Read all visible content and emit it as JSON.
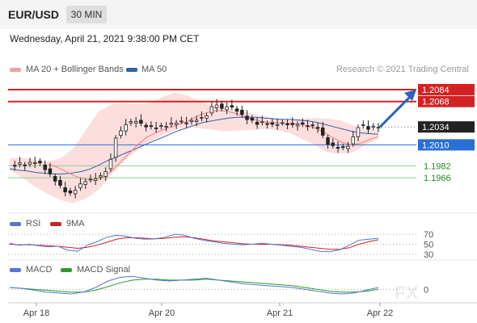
{
  "header": {
    "symbol": "EUR/USD",
    "timeframe": "30 MIN"
  },
  "datetime": "Wednesday, April 21, 2021 9:38:00 PM CET",
  "legend": {
    "ma20_bb": "MA 20 + Bollinger Bands",
    "ma50": "MA 50"
  },
  "credit": "Research © 2021 Trading Central",
  "watermark": "FX",
  "colors": {
    "resistance": "#d32222",
    "support": "#2a6fd6",
    "support_fill": "#2a6fd6",
    "weak_support": "#1e8a1e",
    "candle": "#222222",
    "ma20": "#f08080",
    "ma50": "#3060b0",
    "bands": "#fbd8d8",
    "rsi": "#5577cc",
    "rsi_ma": "#cc2222",
    "macd": "#5577cc",
    "macd_signal": "#2a9a2a",
    "arrow": "#2a64b8"
  },
  "chart_data": [
    {
      "type": "candlestick",
      "panel": "price",
      "x_ticks": [
        "Apr 18",
        "Apr 20",
        "Apr 21",
        "Apr 22"
      ],
      "ylim": [
        1.1925,
        1.2098
      ],
      "price_levels": [
        {
          "value": 1.2084,
          "label": "1.2084",
          "kind": "resistance"
        },
        {
          "value": 1.2068,
          "label": "1.2068",
          "kind": "resistance"
        },
        {
          "value": 1.2034,
          "label": "1.2034",
          "kind": "last"
        },
        {
          "value": 1.201,
          "label": "1.2010",
          "kind": "support"
        },
        {
          "value": 1.1982,
          "label": "1.1982",
          "kind": "weak_support"
        },
        {
          "value": 1.1966,
          "label": "1.1966",
          "kind": "weak_support"
        }
      ],
      "close_path": [
        1.1984,
        1.1982,
        1.1985,
        1.1983,
        1.1986,
        1.1987,
        1.1985,
        1.1978,
        1.197,
        1.1962,
        1.1955,
        1.1948,
        1.1945,
        1.195,
        1.1957,
        1.1962,
        1.1963,
        1.1965,
        1.1968,
        1.1975,
        1.199,
        1.202,
        1.2028,
        1.2038,
        1.204,
        1.2042,
        1.2038,
        1.2035,
        1.2034,
        1.2033,
        1.2035,
        1.2036,
        1.2038,
        1.204,
        1.2041,
        1.204,
        1.2042,
        1.2044,
        1.2046,
        1.205,
        1.206,
        1.2064,
        1.2058,
        1.2062,
        1.206,
        1.2056,
        1.205,
        1.2045,
        1.2042,
        1.2038,
        1.204,
        1.2039,
        1.2037,
        1.2038,
        1.2039,
        1.2038,
        1.2036,
        1.2038,
        1.2037,
        1.2036,
        1.2035,
        1.2033,
        1.2022,
        1.2012,
        1.2008,
        1.2006,
        1.2006,
        1.2009,
        1.202,
        1.2034,
        1.2036,
        1.2032,
        1.2034,
        1.2034
      ],
      "ma50": [
        1.1978,
        1.1976,
        1.1975,
        1.1973,
        1.1972,
        1.1971,
        1.1971,
        1.1972,
        1.1974,
        1.1977,
        1.1982,
        1.1988,
        1.1993,
        1.1998,
        1.2003,
        1.2008,
        1.2013,
        1.2018,
        1.2023,
        1.2028,
        1.2032,
        1.2036,
        1.204,
        1.2042,
        1.2044,
        1.2046,
        1.2047,
        1.2047,
        1.2047,
        1.2046,
        1.2045,
        1.2044,
        1.2044,
        1.2043,
        1.2042,
        1.204,
        1.2037,
        1.2034,
        1.2031,
        1.2028,
        1.2026,
        1.2025,
        1.2024
      ],
      "ma20": [
        1.1984,
        1.198,
        1.1974,
        1.1968,
        1.1964,
        1.1963,
        1.1966,
        1.1974,
        1.1986,
        1.1998,
        1.201,
        1.202,
        1.2026,
        1.2031,
        1.2035,
        1.2039,
        1.2044,
        1.205,
        1.2054,
        1.2056,
        1.2055,
        1.2052,
        1.2048,
        1.2044,
        1.2041,
        1.204,
        1.2039,
        1.2039,
        1.2038,
        1.2036,
        1.2032,
        1.2026,
        1.2019,
        1.2013,
        1.201,
        1.2012,
        1.2017,
        1.2021
      ],
      "bb_upper": [
        1.1992,
        1.1993,
        1.199,
        1.1988,
        1.1992,
        1.2005,
        1.203,
        1.2055,
        1.2064,
        1.2066,
        1.2064,
        1.2066,
        1.2074,
        1.208,
        1.2076,
        1.2068,
        1.2062,
        1.2058,
        1.2056,
        1.2052,
        1.2048,
        1.2045,
        1.2044,
        1.2045,
        1.2046,
        1.2045,
        1.2043,
        1.2036,
        1.203,
        1.203
      ],
      "bb_lower": [
        1.1976,
        1.1966,
        1.1954,
        1.1944,
        1.1936,
        1.1932,
        1.1938,
        1.195,
        1.197,
        1.1988,
        1.2002,
        1.2014,
        1.2022,
        1.203,
        1.2034,
        1.2032,
        1.203,
        1.2028,
        1.2029,
        1.203,
        1.2031,
        1.203,
        1.2026,
        1.2018,
        1.201,
        1.2,
        1.1998,
        1.2,
        1.201,
        1.2018
      ]
    },
    {
      "type": "line",
      "panel": "rsi",
      "legend": [
        "RSI",
        "9MA"
      ],
      "y_ticks": [
        "70",
        "50",
        "30"
      ],
      "ylim": [
        25,
        75
      ],
      "series": [
        {
          "name": "RSI",
          "values": [
            52,
            48,
            50,
            47,
            45,
            46,
            38,
            36,
            48,
            55,
            64,
            68,
            66,
            62,
            60,
            61,
            64,
            70,
            68,
            62,
            58,
            55,
            52,
            50,
            49,
            50,
            52,
            50,
            48,
            46,
            44,
            40,
            36,
            35,
            39,
            48,
            58,
            60,
            62
          ]
        },
        {
          "name": "9MA",
          "values": [
            50,
            49,
            49,
            48,
            47,
            46,
            44,
            42,
            44,
            48,
            54,
            60,
            63,
            63,
            62,
            61,
            62,
            64,
            65,
            63,
            60,
            57,
            55,
            53,
            51,
            50,
            50,
            50,
            49,
            48,
            46,
            44,
            42,
            40,
            40,
            43,
            50,
            55,
            59
          ]
        }
      ]
    },
    {
      "type": "line",
      "panel": "macd",
      "legend": [
        "MACD",
        "MACD Signal"
      ],
      "y_ticks": [
        "0"
      ],
      "ylim": [
        -0.0012,
        0.0016
      ],
      "series": [
        {
          "name": "MACD",
          "values": [
            0.0002,
            0.0001,
            -0.0001,
            -0.0003,
            -0.0004,
            -0.0005,
            -0.0003,
            0.0002,
            0.0009,
            0.0013,
            0.0014,
            0.0012,
            0.001,
            0.0009,
            0.001,
            0.0011,
            0.0012,
            0.001,
            0.0008,
            0.0006,
            0.0005,
            0.0004,
            0.0003,
            0.0002,
            0.0,
            -0.0002,
            -0.0004,
            -0.0005,
            -0.0004,
            -0.0001,
            0.0002
          ]
        },
        {
          "name": "MACD Signal",
          "values": [
            0.0002,
            0.0001,
            0.0,
            -0.0001,
            -0.0002,
            -0.0003,
            -0.0003,
            -0.0001,
            0.0003,
            0.0007,
            0.001,
            0.0011,
            0.0011,
            0.001,
            0.001,
            0.001,
            0.0011,
            0.001,
            0.0009,
            0.0008,
            0.0007,
            0.0006,
            0.0005,
            0.0004,
            0.0002,
            0.0,
            -0.0002,
            -0.0003,
            -0.0003,
            -0.0002,
            0.0
          ]
        }
      ]
    }
  ]
}
